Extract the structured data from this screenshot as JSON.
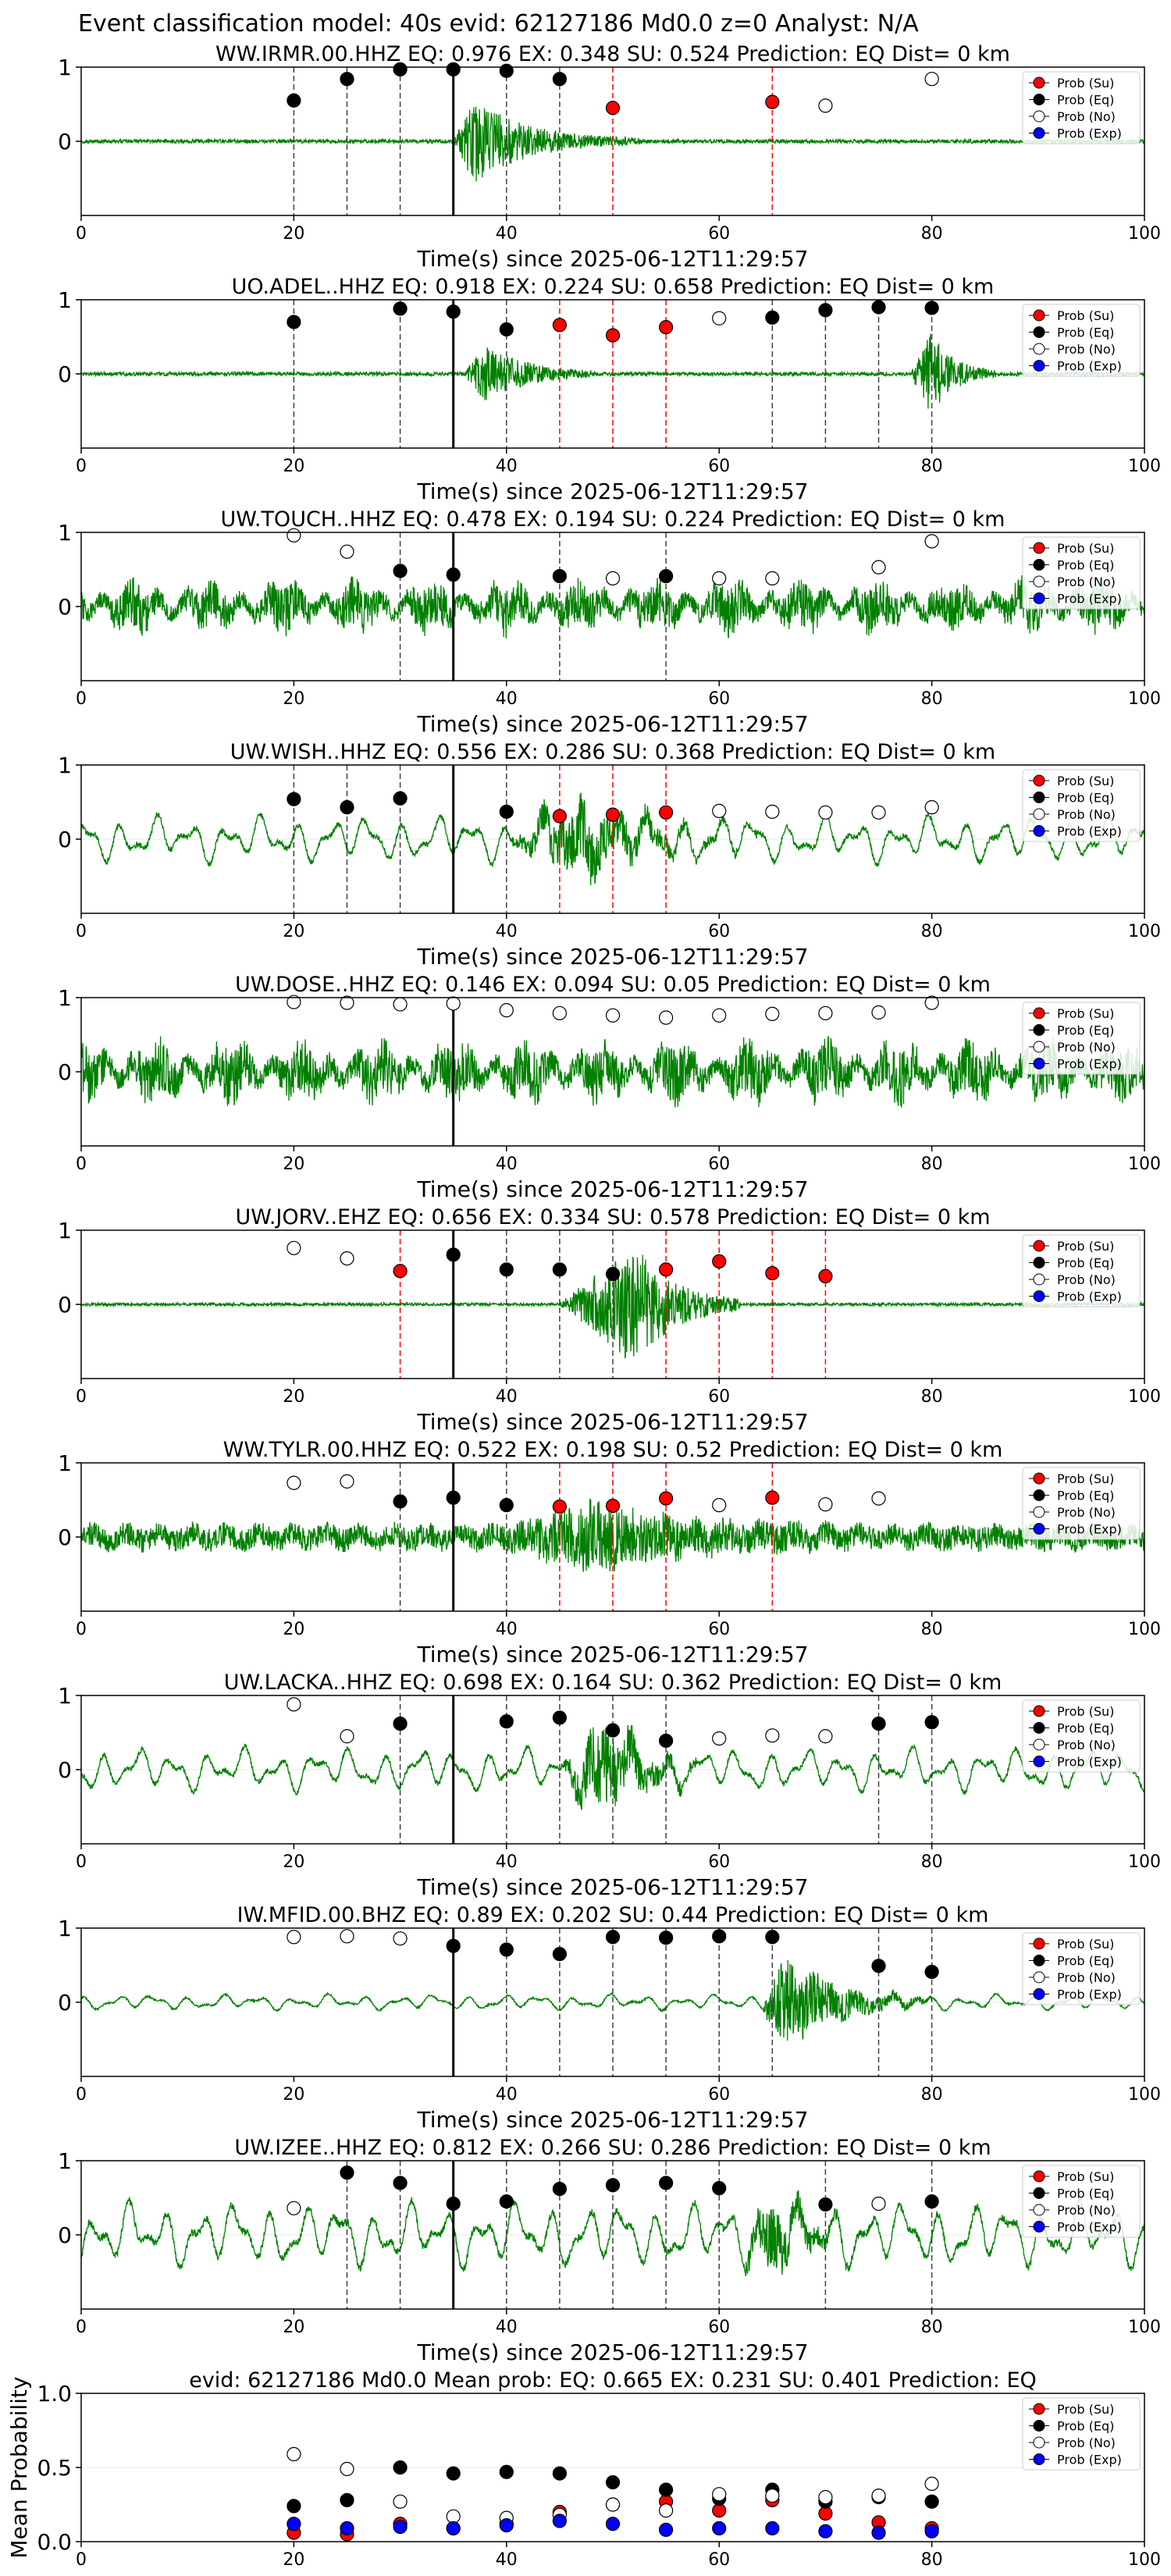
{
  "suptitle": "Event classification model: 40s evid: 62127186 Md0.0 z=0 Analyst: N/A",
  "xlabel": "Time(s) since 2025-06-12T11:29:57",
  "legend": [
    "Prob (Su)",
    "Prob (Eq)",
    "Prob (No)",
    "Prob (Exp)"
  ],
  "colors": {
    "trace": "#008000",
    "su": "#ff0000",
    "eq": "#000000",
    "no": "#ffffff",
    "exp": "#0000ff",
    "line_su": "#ff0000",
    "line_eq": "#404040",
    "onset": "#000000"
  },
  "chart_data": [
    {
      "type": "line",
      "title": "WW.IRMR.00.HHZ   EQ: 0.976  EX: 0.348  SU: 0.524   Prediction: EQ    Dist= 0 km",
      "xlim": [
        0,
        100
      ],
      "ylim": [
        -1,
        1
      ],
      "xticks": [
        0,
        20,
        40,
        60,
        80,
        100
      ],
      "yticks": [
        0,
        1
      ],
      "onset": 35,
      "trace": {
        "style": "burst",
        "base": 0.025,
        "burst_start": 35,
        "burst_peak": 37,
        "burst_end": 48,
        "burst_amp": 0.55,
        "decay": 5,
        "seed": 3
      },
      "markers": [
        {
          "t": 20,
          "v": 0.55,
          "class": "eq"
        },
        {
          "t": 25,
          "v": 0.84,
          "class": "eq"
        },
        {
          "t": 30,
          "v": 0.97,
          "class": "eq"
        },
        {
          "t": 35,
          "v": 0.97,
          "class": "eq"
        },
        {
          "t": 40,
          "v": 0.95,
          "class": "eq"
        },
        {
          "t": 45,
          "v": 0.84,
          "class": "eq"
        },
        {
          "t": 50,
          "v": 0.45,
          "class": "su"
        },
        {
          "t": 65,
          "v": 0.53,
          "class": "su"
        },
        {
          "t": 70,
          "v": 0.48,
          "class": "no"
        },
        {
          "t": 80,
          "v": 0.84,
          "class": "no"
        }
      ]
    },
    {
      "type": "line",
      "title": "UO.ADEL..HHZ   EQ: 0.918  EX: 0.224  SU: 0.658   Prediction: EQ    Dist= 0 km",
      "xlim": [
        0,
        100
      ],
      "ylim": [
        -1,
        1
      ],
      "xticks": [
        0,
        20,
        40,
        60,
        80,
        100
      ],
      "yticks": [
        0,
        1
      ],
      "onset": 35,
      "trace": {
        "style": "double",
        "base": 0.025,
        "burst_start": 36,
        "burst_peak": 38,
        "burst_end": 44,
        "burst_amp": 0.35,
        "decay": 4,
        "burst2_start": 78,
        "burst2_peak": 80,
        "burst2_end": 84,
        "burst2_amp": 0.55,
        "seed": 7
      },
      "markers": [
        {
          "t": 20,
          "v": 0.7,
          "class": "eq"
        },
        {
          "t": 30,
          "v": 0.88,
          "class": "eq"
        },
        {
          "t": 35,
          "v": 0.84,
          "class": "eq"
        },
        {
          "t": 40,
          "v": 0.6,
          "class": "eq"
        },
        {
          "t": 45,
          "v": 0.66,
          "class": "su"
        },
        {
          "t": 50,
          "v": 0.52,
          "class": "su"
        },
        {
          "t": 55,
          "v": 0.63,
          "class": "su"
        },
        {
          "t": 60,
          "v": 0.75,
          "class": "no"
        },
        {
          "t": 65,
          "v": 0.76,
          "class": "eq"
        },
        {
          "t": 70,
          "v": 0.86,
          "class": "eq"
        },
        {
          "t": 75,
          "v": 0.9,
          "class": "eq"
        },
        {
          "t": 80,
          "v": 0.89,
          "class": "eq"
        }
      ]
    },
    {
      "type": "line",
      "title": "UW.TOUCH..HHZ   EQ: 0.478  EX: 0.194  SU: 0.224   Prediction: EQ    Dist= 0 km",
      "xlim": [
        0,
        100
      ],
      "ylim": [
        -1,
        1
      ],
      "xticks": [
        0,
        20,
        40,
        60,
        80,
        100
      ],
      "yticks": [
        0,
        1
      ],
      "onset": 35,
      "trace": {
        "style": "noise",
        "base": 0.28,
        "seed": 11
      },
      "markers": [
        {
          "t": 20,
          "v": 0.96,
          "class": "no"
        },
        {
          "t": 25,
          "v": 0.74,
          "class": "no"
        },
        {
          "t": 30,
          "v": 0.48,
          "class": "eq"
        },
        {
          "t": 35,
          "v": 0.43,
          "class": "eq"
        },
        {
          "t": 45,
          "v": 0.41,
          "class": "eq"
        },
        {
          "t": 50,
          "v": 0.38,
          "class": "no"
        },
        {
          "t": 55,
          "v": 0.41,
          "class": "eq"
        },
        {
          "t": 60,
          "v": 0.38,
          "class": "no"
        },
        {
          "t": 65,
          "v": 0.38,
          "class": "no"
        },
        {
          "t": 75,
          "v": 0.53,
          "class": "no"
        },
        {
          "t": 80,
          "v": 0.88,
          "class": "no"
        }
      ]
    },
    {
      "type": "line",
      "title": "UW.WISH..HHZ   EQ: 0.556  EX: 0.286  SU: 0.368   Prediction: EQ    Dist= 0 km",
      "xlim": [
        0,
        100
      ],
      "ylim": [
        -1,
        1
      ],
      "xticks": [
        0,
        20,
        40,
        60,
        80,
        100
      ],
      "yticks": [
        0,
        1
      ],
      "onset": 35,
      "trace": {
        "style": "wave",
        "base": 0.3,
        "burst_start": 40,
        "burst_peak": 47,
        "burst_end": 58,
        "burst_amp": 0.35,
        "decay": 6,
        "seed": 13
      },
      "markers": [
        {
          "t": 20,
          "v": 0.54,
          "class": "eq"
        },
        {
          "t": 25,
          "v": 0.43,
          "class": "eq"
        },
        {
          "t": 30,
          "v": 0.55,
          "class": "eq"
        },
        {
          "t": 40,
          "v": 0.37,
          "class": "eq"
        },
        {
          "t": 45,
          "v": 0.31,
          "class": "su"
        },
        {
          "t": 50,
          "v": 0.33,
          "class": "su"
        },
        {
          "t": 55,
          "v": 0.36,
          "class": "su"
        },
        {
          "t": 60,
          "v": 0.38,
          "class": "no"
        },
        {
          "t": 65,
          "v": 0.37,
          "class": "no"
        },
        {
          "t": 70,
          "v": 0.36,
          "class": "no"
        },
        {
          "t": 75,
          "v": 0.36,
          "class": "no"
        },
        {
          "t": 80,
          "v": 0.43,
          "class": "no"
        }
      ]
    },
    {
      "type": "line",
      "title": "UW.DOSE..HHZ   EQ: 0.146  EX: 0.094  SU: 0.05   Prediction: EQ    Dist= 0 km",
      "xlim": [
        0,
        100
      ],
      "ylim": [
        -1,
        1
      ],
      "xticks": [
        0,
        20,
        40,
        60,
        80,
        100
      ],
      "yticks": [
        0,
        1
      ],
      "onset": 35,
      "trace": {
        "style": "noise",
        "base": 0.33,
        "seed": 17
      },
      "markers": [
        {
          "t": 20,
          "v": 0.94,
          "class": "no"
        },
        {
          "t": 25,
          "v": 0.93,
          "class": "no"
        },
        {
          "t": 30,
          "v": 0.91,
          "class": "no"
        },
        {
          "t": 35,
          "v": 0.92,
          "class": "no"
        },
        {
          "t": 40,
          "v": 0.83,
          "class": "no"
        },
        {
          "t": 45,
          "v": 0.79,
          "class": "no"
        },
        {
          "t": 50,
          "v": 0.76,
          "class": "no"
        },
        {
          "t": 55,
          "v": 0.73,
          "class": "no"
        },
        {
          "t": 60,
          "v": 0.76,
          "class": "no"
        },
        {
          "t": 65,
          "v": 0.78,
          "class": "no"
        },
        {
          "t": 70,
          "v": 0.79,
          "class": "no"
        },
        {
          "t": 75,
          "v": 0.8,
          "class": "no"
        },
        {
          "t": 80,
          "v": 0.93,
          "class": "no"
        }
      ]
    },
    {
      "type": "line",
      "title": "UW.JORV..EHZ   EQ: 0.656  EX: 0.334  SU: 0.578   Prediction: EQ    Dist= 0 km",
      "xlim": [
        0,
        100
      ],
      "ylim": [
        -1,
        1
      ],
      "xticks": [
        0,
        20,
        40,
        60,
        80,
        100
      ],
      "yticks": [
        0,
        1
      ],
      "onset": 35,
      "trace": {
        "style": "burst",
        "base": 0.02,
        "burst_start": 45,
        "burst_peak": 52,
        "burst_end": 58,
        "burst_amp": 0.8,
        "decay": 4,
        "seed": 19
      },
      "markers": [
        {
          "t": 20,
          "v": 0.76,
          "class": "no"
        },
        {
          "t": 25,
          "v": 0.62,
          "class": "no"
        },
        {
          "t": 30,
          "v": 0.45,
          "class": "su"
        },
        {
          "t": 35,
          "v": 0.67,
          "class": "eq"
        },
        {
          "t": 40,
          "v": 0.47,
          "class": "eq"
        },
        {
          "t": 45,
          "v": 0.47,
          "class": "eq"
        },
        {
          "t": 50,
          "v": 0.41,
          "class": "eq"
        },
        {
          "t": 55,
          "v": 0.47,
          "class": "su"
        },
        {
          "t": 60,
          "v": 0.58,
          "class": "su"
        },
        {
          "t": 65,
          "v": 0.42,
          "class": "su"
        },
        {
          "t": 70,
          "v": 0.38,
          "class": "su"
        }
      ]
    },
    {
      "type": "line",
      "title": "WW.TYLR.00.HHZ   EQ: 0.522  EX: 0.198  SU: 0.52   Prediction: EQ    Dist= 0 km",
      "xlim": [
        0,
        100
      ],
      "ylim": [
        -1,
        1
      ],
      "xticks": [
        0,
        20,
        40,
        60,
        80,
        100
      ],
      "yticks": [
        0,
        1
      ],
      "onset": 35,
      "trace": {
        "style": "noiseburst",
        "base": 0.16,
        "burst_start": 40,
        "burst_peak": 48,
        "burst_end": 62,
        "burst_amp": 0.35,
        "decay": 8,
        "seed": 23
      },
      "markers": [
        {
          "t": 20,
          "v": 0.73,
          "class": "no"
        },
        {
          "t": 25,
          "v": 0.75,
          "class": "no"
        },
        {
          "t": 30,
          "v": 0.48,
          "class": "eq"
        },
        {
          "t": 35,
          "v": 0.53,
          "class": "eq"
        },
        {
          "t": 40,
          "v": 0.43,
          "class": "eq"
        },
        {
          "t": 45,
          "v": 0.41,
          "class": "su"
        },
        {
          "t": 50,
          "v": 0.42,
          "class": "su"
        },
        {
          "t": 55,
          "v": 0.52,
          "class": "su"
        },
        {
          "t": 60,
          "v": 0.43,
          "class": "no"
        },
        {
          "t": 65,
          "v": 0.53,
          "class": "su"
        },
        {
          "t": 70,
          "v": 0.44,
          "class": "no"
        },
        {
          "t": 75,
          "v": 0.52,
          "class": "no"
        }
      ]
    },
    {
      "type": "line",
      "title": "UW.LACKA..HHZ   EQ: 0.698  EX: 0.164  SU: 0.362   Prediction: EQ    Dist= 0 km",
      "xlim": [
        0,
        100
      ],
      "ylim": [
        -1,
        1
      ],
      "xticks": [
        0,
        20,
        40,
        60,
        80,
        100
      ],
      "yticks": [
        0,
        1
      ],
      "onset": 35,
      "trace": {
        "style": "wave",
        "base": 0.28,
        "burst_start": 45,
        "burst_peak": 49,
        "burst_end": 54,
        "burst_amp": 0.45,
        "decay": 4,
        "seed": 29
      },
      "markers": [
        {
          "t": 20,
          "v": 0.88,
          "class": "no"
        },
        {
          "t": 25,
          "v": 0.45,
          "class": "no"
        },
        {
          "t": 30,
          "v": 0.62,
          "class": "eq"
        },
        {
          "t": 40,
          "v": 0.65,
          "class": "eq"
        },
        {
          "t": 45,
          "v": 0.7,
          "class": "eq"
        },
        {
          "t": 50,
          "v": 0.53,
          "class": "eq"
        },
        {
          "t": 55,
          "v": 0.39,
          "class": "eq"
        },
        {
          "t": 60,
          "v": 0.42,
          "class": "no"
        },
        {
          "t": 65,
          "v": 0.46,
          "class": "no"
        },
        {
          "t": 70,
          "v": 0.45,
          "class": "no"
        },
        {
          "t": 75,
          "v": 0.62,
          "class": "eq"
        },
        {
          "t": 80,
          "v": 0.64,
          "class": "eq"
        }
      ]
    },
    {
      "type": "line",
      "title": "IW.MFID.00.BHZ   EQ: 0.89  EX: 0.202  SU: 0.44   Prediction: EQ    Dist= 0 km",
      "xlim": [
        0,
        100
      ],
      "ylim": [
        -1,
        1
      ],
      "xticks": [
        0,
        20,
        40,
        60,
        80,
        100
      ],
      "yticks": [
        0,
        1
      ],
      "onset": 35,
      "trace": {
        "style": "wave",
        "base": 0.1,
        "burst_start": 64,
        "burst_peak": 66,
        "burst_end": 75,
        "burst_amp": 0.5,
        "decay": 5,
        "seed": 31
      },
      "markers": [
        {
          "t": 20,
          "v": 0.88,
          "class": "no"
        },
        {
          "t": 25,
          "v": 0.89,
          "class": "no"
        },
        {
          "t": 30,
          "v": 0.86,
          "class": "no"
        },
        {
          "t": 35,
          "v": 0.76,
          "class": "eq"
        },
        {
          "t": 40,
          "v": 0.71,
          "class": "eq"
        },
        {
          "t": 45,
          "v": 0.65,
          "class": "eq"
        },
        {
          "t": 50,
          "v": 0.88,
          "class": "eq"
        },
        {
          "t": 55,
          "v": 0.87,
          "class": "eq"
        },
        {
          "t": 60,
          "v": 0.89,
          "class": "eq"
        },
        {
          "t": 65,
          "v": 0.88,
          "class": "eq"
        },
        {
          "t": 75,
          "v": 0.49,
          "class": "eq"
        },
        {
          "t": 80,
          "v": 0.41,
          "class": "eq"
        }
      ]
    },
    {
      "type": "line",
      "title": "UW.IZEE..HHZ   EQ: 0.812  EX: 0.266  SU: 0.286   Prediction: EQ    Dist= 0 km",
      "xlim": [
        0,
        100
      ],
      "ylim": [
        -1,
        1
      ],
      "xticks": [
        0,
        20,
        40,
        60,
        80,
        100
      ],
      "yticks": [
        0,
        1
      ],
      "onset": 35,
      "trace": {
        "style": "wave",
        "base": 0.42,
        "burst_start": 62,
        "burst_peak": 65,
        "burst_end": 70,
        "burst_amp": 0.35,
        "decay": 3,
        "seed": 37
      },
      "markers": [
        {
          "t": 20,
          "v": 0.36,
          "class": "no"
        },
        {
          "t": 25,
          "v": 0.84,
          "class": "eq"
        },
        {
          "t": 30,
          "v": 0.7,
          "class": "eq"
        },
        {
          "t": 35,
          "v": 0.42,
          "class": "eq"
        },
        {
          "t": 40,
          "v": 0.45,
          "class": "eq"
        },
        {
          "t": 45,
          "v": 0.62,
          "class": "eq"
        },
        {
          "t": 50,
          "v": 0.67,
          "class": "eq"
        },
        {
          "t": 55,
          "v": 0.7,
          "class": "eq"
        },
        {
          "t": 60,
          "v": 0.63,
          "class": "eq"
        },
        {
          "t": 70,
          "v": 0.41,
          "class": "eq"
        },
        {
          "t": 75,
          "v": 0.42,
          "class": "no"
        },
        {
          "t": 80,
          "v": 0.45,
          "class": "eq"
        }
      ]
    },
    {
      "type": "scatter",
      "title": "evid: 62127186  Md0.0   Mean prob:   EQ: 0.665  EX: 0.231  SU: 0.401   Prediction: EQ",
      "xlim": [
        0,
        100
      ],
      "ylim": [
        0,
        1
      ],
      "xticks": [
        0,
        20,
        40,
        60,
        80,
        100
      ],
      "yticks": [
        0.0,
        0.5,
        1.0
      ],
      "ylabel": "Mean Probability",
      "series": [
        {
          "name": "Prob (Su)",
          "class": "su",
          "x": [
            20,
            25,
            30,
            35,
            40,
            45,
            50,
            55,
            60,
            65,
            70,
            75,
            80
          ],
          "values": [
            0.06,
            0.05,
            0.12,
            0.09,
            0.12,
            0.2,
            0.25,
            0.27,
            0.21,
            0.28,
            0.19,
            0.13,
            0.09
          ]
        },
        {
          "name": "Prob (Eq)",
          "class": "eq",
          "x": [
            20,
            25,
            30,
            35,
            40,
            45,
            50,
            55,
            60,
            65,
            70,
            75,
            80
          ],
          "values": [
            0.24,
            0.28,
            0.5,
            0.46,
            0.47,
            0.46,
            0.4,
            0.35,
            0.29,
            0.35,
            0.27,
            0.3,
            0.27
          ]
        },
        {
          "name": "Prob (No)",
          "class": "no",
          "x": [
            20,
            25,
            30,
            35,
            40,
            45,
            50,
            55,
            60,
            65,
            70,
            75,
            80
          ],
          "values": [
            0.59,
            0.49,
            0.27,
            0.17,
            0.16,
            0.18,
            0.25,
            0.21,
            0.32,
            0.31,
            0.3,
            0.31,
            0.39
          ]
        },
        {
          "name": "Prob (Exp)",
          "class": "exp",
          "x": [
            20,
            25,
            30,
            35,
            40,
            45,
            50,
            55,
            60,
            65,
            70,
            75,
            80
          ],
          "values": [
            0.12,
            0.09,
            0.1,
            0.09,
            0.11,
            0.14,
            0.12,
            0.08,
            0.09,
            0.09,
            0.07,
            0.06,
            0.07
          ]
        }
      ]
    }
  ]
}
